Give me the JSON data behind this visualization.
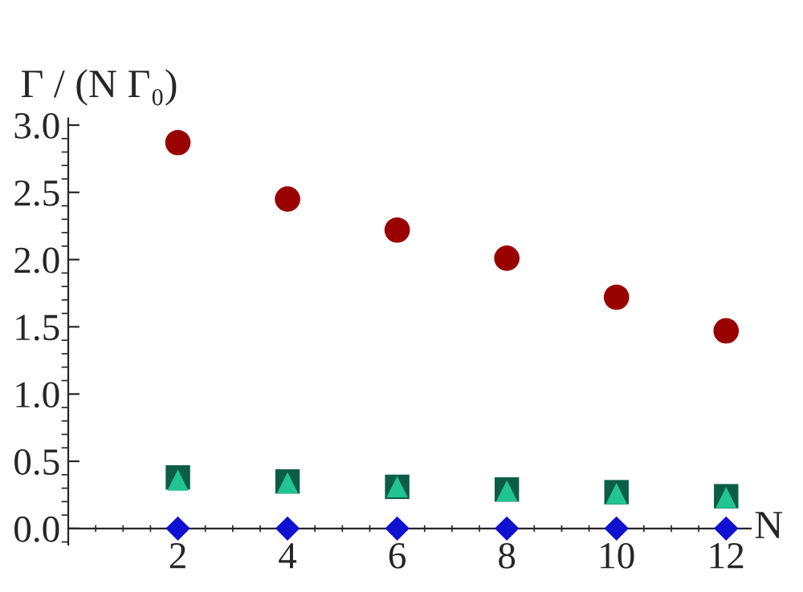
{
  "chart_data": {
    "type": "scatter",
    "ylabel": "Γ / (N Γ₀)",
    "xlabel": "N",
    "x": [
      2,
      4,
      6,
      8,
      10,
      12
    ],
    "series": [
      {
        "color": "#990000",
        "marker": "circle",
        "values": [
          2.87,
          2.45,
          2.22,
          2.01,
          1.72,
          1.47
        ]
      },
      {
        "color": "#0b5e45",
        "marker": "square",
        "values": [
          0.38,
          0.35,
          0.31,
          0.29,
          0.27,
          0.24
        ]
      },
      {
        "color": "#22c492",
        "marker": "triangle",
        "values": [
          0.36,
          0.34,
          0.31,
          0.28,
          0.26,
          0.23
        ]
      },
      {
        "color": "#1010d0",
        "marker": "diamond",
        "values": [
          0,
          0,
          0,
          0,
          0,
          0
        ]
      }
    ],
    "xlim": [
      0,
      12.45
    ],
    "ylim": [
      -0.12,
      3.05
    ],
    "xticks": [
      2,
      4,
      6,
      8,
      10,
      12
    ],
    "yticks": [
      {
        "value": 0,
        "label": "0.0"
      },
      {
        "value": 0.5,
        "label": "0.5"
      },
      {
        "value": 1,
        "label": "1.0"
      },
      {
        "value": 1.5,
        "label": "1.5"
      },
      {
        "value": 2,
        "label": "2.0"
      },
      {
        "value": 2.5,
        "label": "2.5"
      },
      {
        "value": 3,
        "label": "3.0"
      }
    ],
    "grid": false,
    "legend": false
  }
}
